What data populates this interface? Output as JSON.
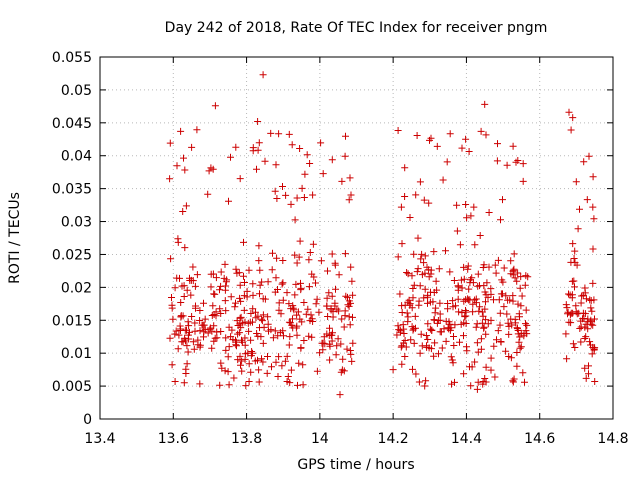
{
  "chart_data": {
    "type": "scatter",
    "title": "Day 242 of 2018, Rate Of TEC Index for receiver pngm",
    "xlabel": "GPS time / hours",
    "ylabel": "ROTI / TECUs",
    "xlim": [
      13.4,
      14.8
    ],
    "ylim": [
      0,
      0.055
    ],
    "xticks": [
      13.4,
      13.6,
      13.8,
      14,
      14.2,
      14.4,
      14.6,
      14.8
    ],
    "yticks": [
      0,
      0.005,
      0.01,
      0.015,
      0.02,
      0.025,
      0.03,
      0.035,
      0.04,
      0.045,
      0.05,
      0.055
    ],
    "xtick_labels": [
      "13.4",
      "13.6",
      "13.8",
      "14",
      "14.2",
      "14.4",
      "14.6",
      "14.8"
    ],
    "ytick_labels": [
      "0",
      "0.005",
      "0.01",
      "0.015",
      "0.02",
      "0.025",
      "0.03",
      "0.035",
      "0.04",
      "0.045",
      "0.05",
      "0.055"
    ],
    "grid": true,
    "marker": "+",
    "marker_color": "#cc0000",
    "segments": [
      {
        "x_start": 13.59,
        "x_end": 14.09,
        "n": 420,
        "seed": 11
      },
      {
        "x_start": 14.21,
        "x_end": 14.57,
        "n": 330,
        "seed": 23
      },
      {
        "x_start": 14.67,
        "x_end": 14.75,
        "n": 80,
        "seed": 37
      }
    ],
    "distinct_points": [
      {
        "x": 13.845,
        "y": 0.0523
      },
      {
        "x": 13.715,
        "y": 0.0476
      },
      {
        "x": 13.83,
        "y": 0.0452
      },
      {
        "x": 14.45,
        "y": 0.0478
      },
      {
        "x": 14.44,
        "y": 0.0437
      },
      {
        "x": 14.68,
        "y": 0.0466
      },
      {
        "x": 14.69,
        "y": 0.0458
      },
      {
        "x": 13.62,
        "y": 0.0437
      },
      {
        "x": 14.08,
        "y": 0.0333
      },
      {
        "x": 14.42,
        "y": 0.0322
      },
      {
        "x": 14.555,
        "y": 0.0388
      },
      {
        "x": 14.72,
        "y": 0.0391
      },
      {
        "x": 14.745,
        "y": 0.0322
      },
      {
        "x": 13.59,
        "y": 0.0365
      },
      {
        "x": 13.63,
        "y": 0.0055
      },
      {
        "x": 13.605,
        "y": 0.0057
      },
      {
        "x": 14.055,
        "y": 0.0037
      },
      {
        "x": 14.43,
        "y": 0.0045
      },
      {
        "x": 14.75,
        "y": 0.0057
      },
      {
        "x": 14.2,
        "y": 0.0075
      },
      {
        "x": 14.685,
        "y": 0.0238
      },
      {
        "x": 14.745,
        "y": 0.0206
      }
    ]
  }
}
